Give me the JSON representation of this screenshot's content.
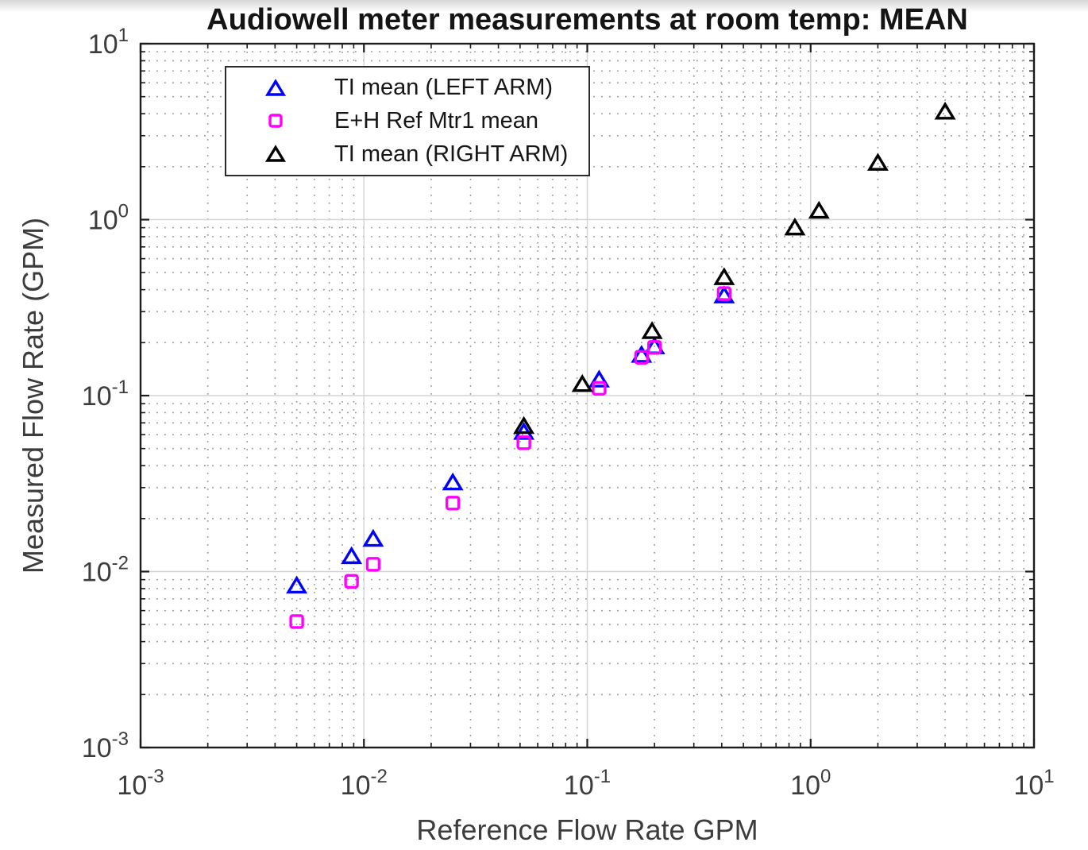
{
  "title": "Audiowell meter measurements at room temp: MEAN",
  "chart_data": {
    "type": "scatter",
    "xlabel": "Reference Flow Rate GPM",
    "ylabel": "Measured Flow Rate (GPM)",
    "x_scale": "log",
    "y_scale": "log",
    "xlim": [
      0.001,
      10
    ],
    "ylim": [
      0.001,
      10
    ],
    "x_tick_exponents": [
      -3,
      -2,
      -1,
      0,
      1
    ],
    "y_tick_exponents": [
      -3,
      -2,
      -1,
      0,
      1
    ],
    "tick_base": "10",
    "grid": "major solid gray + minor dotted gray",
    "legend_position": "northwest-inside",
    "axis_color": "#1c1c1c",
    "series": [
      {
        "name": "TI mean (LEFT ARM)",
        "marker": "triangle",
        "color": "#0000ff",
        "points": [
          [
            0.005,
            0.0083
          ],
          [
            0.0088,
            0.0122
          ],
          [
            0.011,
            0.0153
          ],
          [
            0.025,
            0.032
          ],
          [
            0.052,
            0.062
          ],
          [
            0.113,
            0.123
          ],
          [
            0.175,
            0.17
          ],
          [
            0.2,
            0.19
          ],
          [
            0.41,
            0.37
          ]
        ]
      },
      {
        "name": "E+H Ref Mtr1 mean",
        "marker": "square",
        "color": "#ff00ff",
        "points": [
          [
            0.005,
            0.0052
          ],
          [
            0.0088,
            0.0088
          ],
          [
            0.011,
            0.011
          ],
          [
            0.025,
            0.0245
          ],
          [
            0.052,
            0.054
          ],
          [
            0.113,
            0.11
          ],
          [
            0.175,
            0.165
          ],
          [
            0.2,
            0.188
          ],
          [
            0.41,
            0.38
          ]
        ]
      },
      {
        "name": "TI mean (RIGHT ARM)",
        "marker": "triangle",
        "color": "#000000",
        "points": [
          [
            0.052,
            0.067
          ],
          [
            0.095,
            0.116
          ],
          [
            0.195,
            0.232
          ],
          [
            0.41,
            0.47
          ],
          [
            0.85,
            0.9
          ],
          [
            1.09,
            1.12
          ],
          [
            2.0,
            2.1
          ],
          [
            4.0,
            4.1
          ]
        ]
      }
    ]
  }
}
